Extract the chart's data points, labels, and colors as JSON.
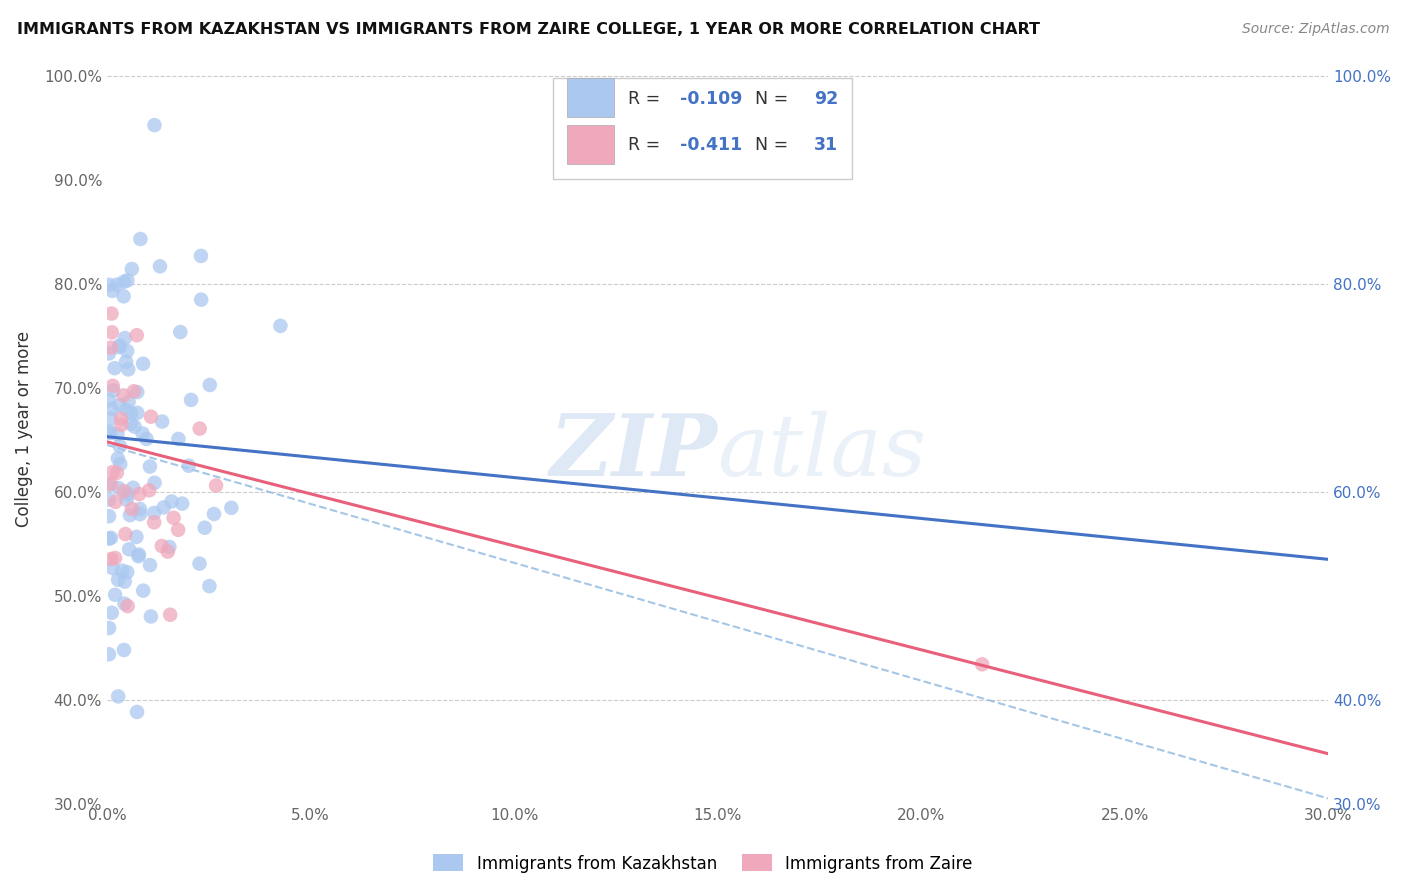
{
  "title": "IMMIGRANTS FROM KAZAKHSTAN VS IMMIGRANTS FROM ZAIRE COLLEGE, 1 YEAR OR MORE CORRELATION CHART",
  "source_text": "Source: ZipAtlas.com",
  "ylabel": "College, 1 year or more",
  "xlim": [
    0.0,
    0.3
  ],
  "ylim": [
    0.3,
    1.02
  ],
  "xtick_labels": [
    "0.0%",
    "5.0%",
    "10.0%",
    "15.0%",
    "20.0%",
    "25.0%",
    "30.0%"
  ],
  "xtick_vals": [
    0.0,
    0.05,
    0.1,
    0.15,
    0.2,
    0.25,
    0.3
  ],
  "ytick_labels_left": [
    "30.0%",
    "40.0%",
    "50.0%",
    "60.0%",
    "70.0%",
    "80.0%",
    "90.0%",
    "100.0%"
  ],
  "ytick_vals_left": [
    0.3,
    0.4,
    0.5,
    0.6,
    0.7,
    0.8,
    0.9,
    1.0
  ],
  "ytick_labels_right": [
    "100.0%",
    "80.0%",
    "60.0%",
    "40.0%",
    "30.0%"
  ],
  "ytick_vals_right": [
    1.0,
    0.8,
    0.6,
    0.4,
    0.3
  ],
  "kazakhstan_color": "#aac8f0",
  "zaire_color": "#f0a8bc",
  "kazakhstan_line_color": "#4472c4",
  "zaire_line_color": "#e8607a",
  "dashed_line_color": "#90b8e0",
  "R_kaz": -0.109,
  "N_kaz": 92,
  "R_zaire": -0.411,
  "N_zaire": 31,
  "legend_label_kaz": "Immigrants from Kazakhstan",
  "legend_label_zaire": "Immigrants from Zaire",
  "watermark_zip": "ZIP",
  "watermark_atlas": "atlas",
  "kaz_line_x0": 0.0,
  "kaz_line_y0": 0.653,
  "kaz_line_x1": 0.3,
  "kaz_line_y1": 0.535,
  "zaire_line_x0": 0.0,
  "zaire_line_y0": 0.648,
  "zaire_line_x1": 0.3,
  "zaire_line_y1": 0.348,
  "dashed_line_x0": 0.0,
  "dashed_line_y0": 0.645,
  "dashed_line_x1": 0.3,
  "dashed_line_y1": 0.305
}
